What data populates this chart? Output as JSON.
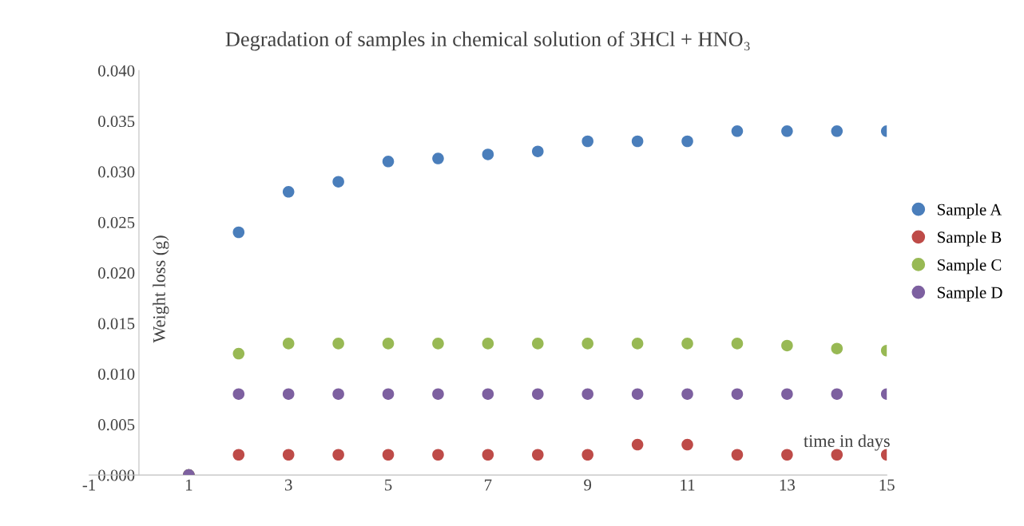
{
  "chart_data": {
    "type": "scatter",
    "title": "Degradation of samples in chemical solution of 3HCl + HNO₃",
    "xlabel": "time in days",
    "ylabel": "Weight loss (g)",
    "x": [
      1,
      2,
      3,
      4,
      5,
      6,
      7,
      8,
      9,
      10,
      11,
      12,
      13,
      14,
      15
    ],
    "series": [
      {
        "name": "Sample A",
        "color": "#4a7ebb",
        "values": [
          0,
          0.024,
          0.028,
          0.029,
          0.031,
          0.0313,
          0.0317,
          0.032,
          0.033,
          0.033,
          0.033,
          0.034,
          0.034,
          0.034,
          0.034
        ]
      },
      {
        "name": "Sample B",
        "color": "#be4b48",
        "values": [
          0,
          0.002,
          0.002,
          0.002,
          0.002,
          0.002,
          0.002,
          0.002,
          0.002,
          0.003,
          0.003,
          0.002,
          0.002,
          0.002,
          0.002
        ]
      },
      {
        "name": "Sample C",
        "color": "#98b954",
        "values": [
          0,
          0.012,
          0.013,
          0.013,
          0.013,
          0.013,
          0.013,
          0.013,
          0.013,
          0.013,
          0.013,
          0.013,
          0.0128,
          0.0125,
          0.0123
        ]
      },
      {
        "name": "Sample D",
        "color": "#7d60a0",
        "values": [
          0,
          0.008,
          0.008,
          0.008,
          0.008,
          0.008,
          0.008,
          0.008,
          0.008,
          0.008,
          0.008,
          0.008,
          0.008,
          0.008,
          0.008
        ]
      }
    ],
    "xlim": [
      -1,
      15
    ],
    "xticks": [
      -1,
      1,
      3,
      5,
      7,
      9,
      11,
      13,
      15
    ],
    "ylim": [
      0,
      0.04
    ],
    "yticks": [
      {
        "value": 0,
        "label": "0.000"
      },
      {
        "value": 0.005,
        "label": "0.005"
      },
      {
        "value": 0.01,
        "label": "0.010"
      },
      {
        "value": 0.015,
        "label": "0.015"
      },
      {
        "value": 0.02,
        "label": "0.020"
      },
      {
        "value": 0.025,
        "label": "0.025"
      },
      {
        "value": 0.03,
        "label": "0.030"
      },
      {
        "value": 0.035,
        "label": "0.035"
      },
      {
        "value": 0.04,
        "label": "0.040"
      }
    ],
    "grid": false,
    "legend": "right",
    "marker": "circle"
  }
}
